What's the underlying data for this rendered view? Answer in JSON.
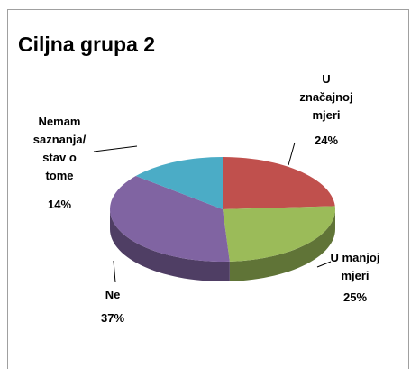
{
  "chart_data": {
    "type": "pie3d",
    "title": "Ciljna grupa 2",
    "categories": [
      "U značajnoj mjeri",
      "U manjoj mjeri",
      "Ne",
      "Nemam saznanja/ stav o tome"
    ],
    "values": [
      24,
      25,
      37,
      14
    ],
    "value_labels": [
      "24%",
      "25%",
      "37%",
      "14%"
    ],
    "colors": [
      "#c0504d",
      "#9bbb59",
      "#8064a2",
      "#4bacc6"
    ]
  }
}
